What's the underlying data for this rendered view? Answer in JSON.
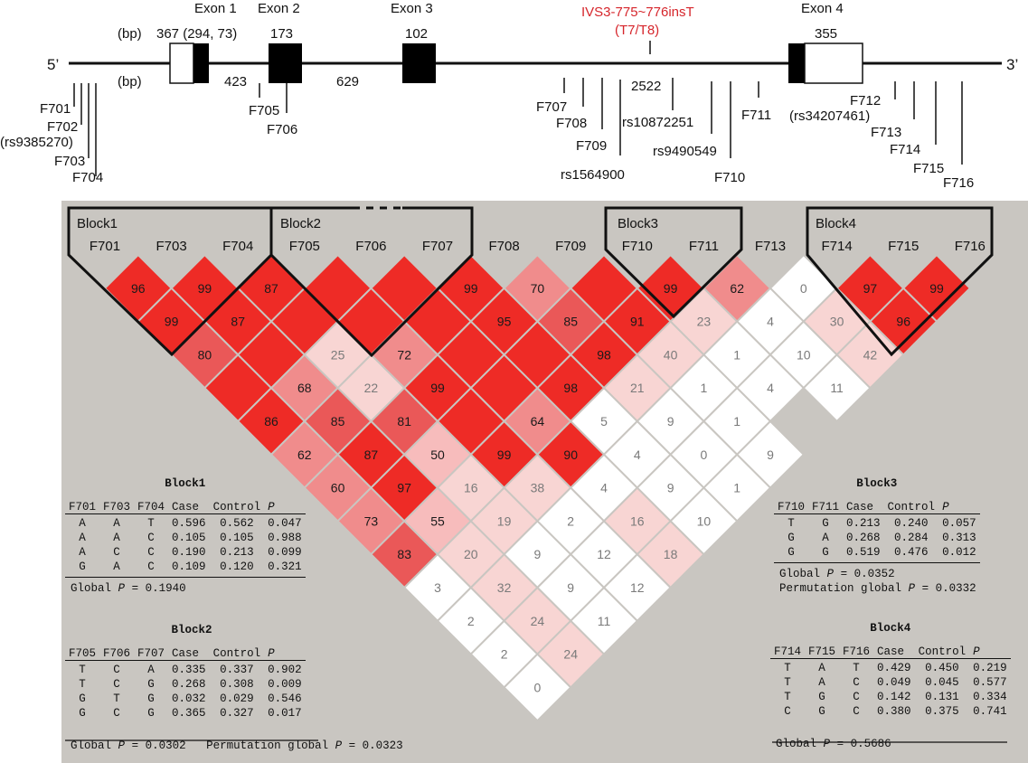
{
  "gene": {
    "five_prime": "5’",
    "three_prime": "3’",
    "bp_label": "(bp)",
    "exons": [
      {
        "label": "Exon 1",
        "size": "367 (294, 73)"
      },
      {
        "label": "Exon 2",
        "size": "173"
      },
      {
        "label": "Exon 3",
        "size": "102"
      },
      {
        "label": "Exon 4",
        "size": "355"
      }
    ],
    "introns": [
      "423",
      "629",
      "2522"
    ],
    "variant": {
      "line1": "IVS3-775~776insT",
      "line2": "(T7/T8)",
      "color": "#d6262c"
    },
    "snps": [
      "F701",
      "F702",
      "(rs9385270)",
      "F703",
      "F704",
      "F705",
      "F706",
      "F707",
      "F708",
      "F709",
      "rs1564900",
      "rs10872251",
      "rs9490549",
      "F710",
      "F711",
      "F712",
      "(rs34207461)",
      "F713",
      "F714",
      "F715",
      "F716"
    ]
  },
  "ld": {
    "markers": [
      "F701",
      "F703",
      "F704",
      "F705",
      "F706",
      "F707",
      "F708",
      "F709",
      "F710",
      "F711",
      "F713",
      "F714",
      "F715",
      "F716"
    ],
    "blocks": [
      "Block1",
      "Block2",
      "Block3",
      "Block4"
    ],
    "rows": [
      [
        "96",
        "99",
        "87",
        "",
        "",
        "99",
        "70",
        "",
        "99",
        "62",
        "0",
        "97",
        "99"
      ],
      [
        "99",
        "87",
        "",
        "",
        "",
        "95",
        "85",
        "91",
        "23",
        "4",
        "30",
        "96"
      ],
      [
        "80",
        "",
        "25",
        "72",
        "",
        "",
        "98",
        "40",
        "1",
        "10",
        "42"
      ],
      [
        "",
        "68",
        "22",
        "99",
        "",
        "98",
        "21",
        "1",
        "4",
        "11"
      ],
      [
        "86",
        "85",
        "81",
        "",
        "64",
        "5",
        "9",
        "1"
      ],
      [
        "62",
        "87",
        "50",
        "99",
        "90",
        "4",
        "0",
        "9"
      ],
      [
        "60",
        "97",
        "16",
        "38",
        "4",
        "9",
        "1"
      ],
      [
        "73",
        "55",
        "19",
        "2",
        "16",
        "10"
      ],
      [
        "83",
        "20",
        "9",
        "12",
        "18"
      ],
      [
        "3",
        "32",
        "9",
        "12"
      ],
      [
        "2",
        "24",
        "11"
      ],
      [
        "2",
        "24"
      ],
      [
        "0"
      ]
    ],
    "colors": {
      "strong": "#ee2b26",
      "background": "#c9c6c1"
    }
  },
  "haplotypes": {
    "block1": {
      "title": "Block1",
      "headers": [
        "F701",
        "F703",
        "F704",
        "Case",
        "Control",
        "P"
      ],
      "rows": [
        [
          "A",
          "A",
          "T",
          "0.596",
          "0.562",
          "0.047"
        ],
        [
          "A",
          "A",
          "C",
          "0.105",
          "0.105",
          "0.988"
        ],
        [
          "A",
          "C",
          "C",
          "0.190",
          "0.213",
          "0.099"
        ],
        [
          "G",
          "A",
          "C",
          "0.109",
          "0.120",
          "0.321"
        ]
      ],
      "global_label": "Global",
      "p": "P",
      "global_value": "= 0.1940"
    },
    "block2": {
      "title": "Block2",
      "headers": [
        "F705",
        "F706",
        "F707",
        "Case",
        "Control",
        "P"
      ],
      "rows": [
        [
          "T",
          "C",
          "A",
          "0.335",
          "0.337",
          "0.902"
        ],
        [
          "T",
          "C",
          "G",
          "0.268",
          "0.308",
          "0.009"
        ],
        [
          "G",
          "T",
          "G",
          "0.032",
          "0.029",
          "0.546"
        ],
        [
          "G",
          "C",
          "G",
          "0.365",
          "0.327",
          "0.017"
        ]
      ],
      "global_label": "Global",
      "p": "P",
      "global_value": "= 0.0302",
      "perm_label": "Permutation global",
      "perm_value": "= 0.0323"
    },
    "block3": {
      "title": "Block3",
      "headers": [
        "F710",
        "F711",
        "Case",
        "Control",
        "P"
      ],
      "rows": [
        [
          "T",
          "G",
          "0.213",
          "0.240",
          "0.057"
        ],
        [
          "G",
          "A",
          "0.268",
          "0.284",
          "0.313"
        ],
        [
          "G",
          "G",
          "0.519",
          "0.476",
          "0.012"
        ]
      ],
      "global_label": "Global",
      "p": "P",
      "global_value": "= 0.0352",
      "perm_label": "Permutation global",
      "perm_value": "= 0.0332"
    },
    "block4": {
      "title": "Block4",
      "headers": [
        "F714",
        "F715",
        "F716",
        "Case",
        "Control",
        "P"
      ],
      "rows": [
        [
          "T",
          "A",
          "T",
          "0.429",
          "0.450",
          "0.219"
        ],
        [
          "T",
          "A",
          "C",
          "0.049",
          "0.045",
          "0.577"
        ],
        [
          "T",
          "G",
          "C",
          "0.142",
          "0.131",
          "0.334"
        ],
        [
          "C",
          "G",
          "C",
          "0.380",
          "0.375",
          "0.741"
        ]
      ],
      "global_label": "Global",
      "p": "P",
      "global_value": "= 0.5686"
    }
  }
}
